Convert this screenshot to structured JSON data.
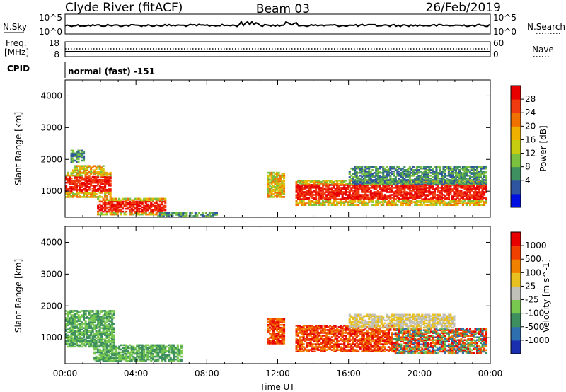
{
  "header": {
    "station": "Clyde River (fitACF)",
    "beam": "Beam 03",
    "date": "26/Feb/2019"
  },
  "strip_labels": {
    "nsky": "N.Sky",
    "nsky_ticks": [
      "10^5",
      "10^0"
    ],
    "nsearch": "N.Search",
    "nsearch_ticks": [
      "10^5",
      "10^0"
    ],
    "freq_line1": "Freq.",
    "freq_line2": "[MHz]",
    "freq_ticks": [
      "18",
      "8"
    ],
    "nave": "Nave",
    "nave_ticks": [
      "60",
      "0"
    ],
    "cpid": "CPID",
    "cpid_text": "normal (fast) -151"
  },
  "chart_data": [
    {
      "type": "heatmap",
      "panel": "power",
      "title": "",
      "ylabel": "Slant Range [km]",
      "xlabel": "",
      "ylim": [
        180,
        4500
      ],
      "yticks": [
        "4000",
        "3000",
        "2000",
        "1000"
      ],
      "xlim": [
        0,
        24
      ],
      "colorbar": {
        "label": "Power [dB]",
        "ticks": [
          "28",
          "24",
          "20",
          "16",
          "12",
          "8",
          "4"
        ],
        "colors": [
          "#0010e0",
          "#2f55a0",
          "#3f9060",
          "#7cc040",
          "#c8cc10",
          "#f0b000",
          "#f07000",
          "#f03a10",
          "#e80000"
        ]
      },
      "blobs": [
        {
          "t0": 0.0,
          "t1": 2.6,
          "r0": 800,
          "r1": 1600,
          "level": "strong"
        },
        {
          "t0": 0.4,
          "t1": 2.2,
          "r0": 1550,
          "r1": 1800,
          "level": "medium"
        },
        {
          "t0": 1.8,
          "t1": 5.6,
          "r0": 250,
          "r1": 750,
          "level": "strong"
        },
        {
          "t0": 5.2,
          "t1": 8.5,
          "r0": 200,
          "r1": 300,
          "level": "weak"
        },
        {
          "t0": 11.4,
          "t1": 12.3,
          "r0": 800,
          "r1": 1600,
          "level": "medium"
        },
        {
          "t0": 13.0,
          "t1": 23.8,
          "r0": 550,
          "r1": 1350,
          "level": "strong"
        },
        {
          "t0": 16.0,
          "t1": 23.8,
          "r0": 1200,
          "r1": 1750,
          "level": "weak"
        },
        {
          "t0": 0.3,
          "t1": 1.0,
          "r0": 1900,
          "r1": 2300,
          "level": "weak"
        }
      ]
    },
    {
      "type": "heatmap",
      "panel": "velocity",
      "title": "",
      "ylabel": "Slant Range [km]",
      "xlabel": "Time UT",
      "ylim": [
        180,
        4500
      ],
      "yticks": [
        "4000",
        "3000",
        "2000",
        "1000"
      ],
      "xlim": [
        0,
        24
      ],
      "xticks": [
        "00:00",
        "04:00",
        "08:00",
        "12:00",
        "16:00",
        "20:00",
        "00:00"
      ],
      "colorbar": {
        "label": "Velocity [m s^-1]",
        "ticks": [
          "1000",
          "500",
          "100",
          "25",
          "-25",
          "-100",
          "-500",
          "-1000"
        ],
        "colors": [
          "#1a2fb0",
          "#2e6fb0",
          "#3e8f60",
          "#78c850",
          "#c0c0b8",
          "#e8c020",
          "#f08000",
          "#f04000",
          "#e80000"
        ]
      },
      "blobs": [
        {
          "t0": 0.0,
          "t1": 2.8,
          "r0": 700,
          "r1": 1850,
          "level": "mixed-green"
        },
        {
          "t0": 1.6,
          "t1": 6.5,
          "r0": 250,
          "r1": 750,
          "level": "mixed-green"
        },
        {
          "t0": 11.4,
          "t1": 12.3,
          "r0": 800,
          "r1": 1600,
          "level": "orange"
        },
        {
          "t0": 13.0,
          "t1": 18.5,
          "r0": 550,
          "r1": 1400,
          "level": "orange"
        },
        {
          "t0": 18.5,
          "t1": 23.8,
          "r0": 500,
          "r1": 1300,
          "level": "mixed"
        },
        {
          "t0": 16.0,
          "t1": 22.0,
          "r0": 1300,
          "r1": 1750,
          "level": "grey"
        }
      ]
    }
  ]
}
